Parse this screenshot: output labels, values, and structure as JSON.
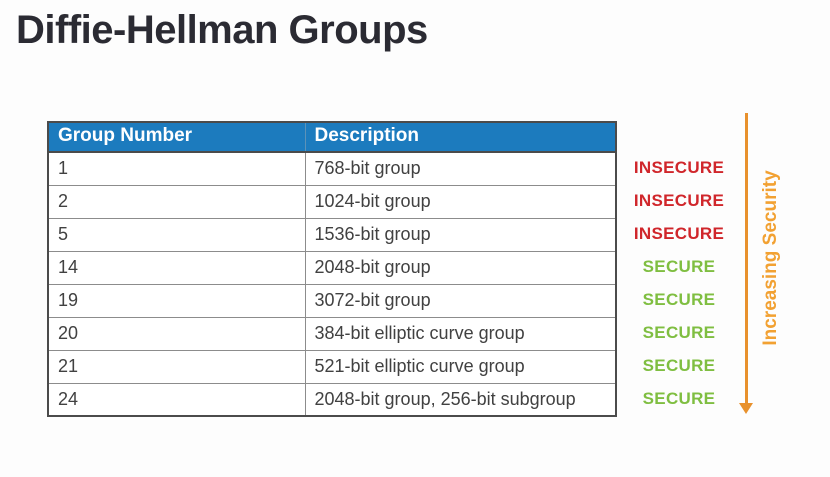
{
  "title": "Diffie-Hellman Groups",
  "table": {
    "columns": [
      "Group Number",
      "Description"
    ],
    "rows": [
      {
        "group": "1",
        "description": "768-bit group",
        "status": "INSECURE"
      },
      {
        "group": "2",
        "description": "1024-bit group",
        "status": "INSECURE"
      },
      {
        "group": "5",
        "description": "1536-bit group",
        "status": "INSECURE"
      },
      {
        "group": "14",
        "description": "2048-bit group",
        "status": "SECURE"
      },
      {
        "group": "19",
        "description": "3072-bit group",
        "status": "SECURE"
      },
      {
        "group": "20",
        "description": "384-bit elliptic curve group",
        "status": "SECURE"
      },
      {
        "group": "21",
        "description": "521-bit elliptic curve group",
        "status": "SECURE"
      },
      {
        "group": "24",
        "description": "2048-bit group, 256-bit subgroup",
        "status": "SECURE"
      }
    ]
  },
  "annotation": {
    "arrow_label": "Increasing Security",
    "arrow_direction": "down"
  },
  "colors": {
    "header_bg": "#1c7bbe",
    "header_text": "#ffffff",
    "insecure": "#d0262b",
    "secure": "#7fbe41",
    "arrow": "#e8912d",
    "arrow_label": "#f2a132",
    "title_text": "#2b2b33",
    "row_text": "#414141"
  }
}
